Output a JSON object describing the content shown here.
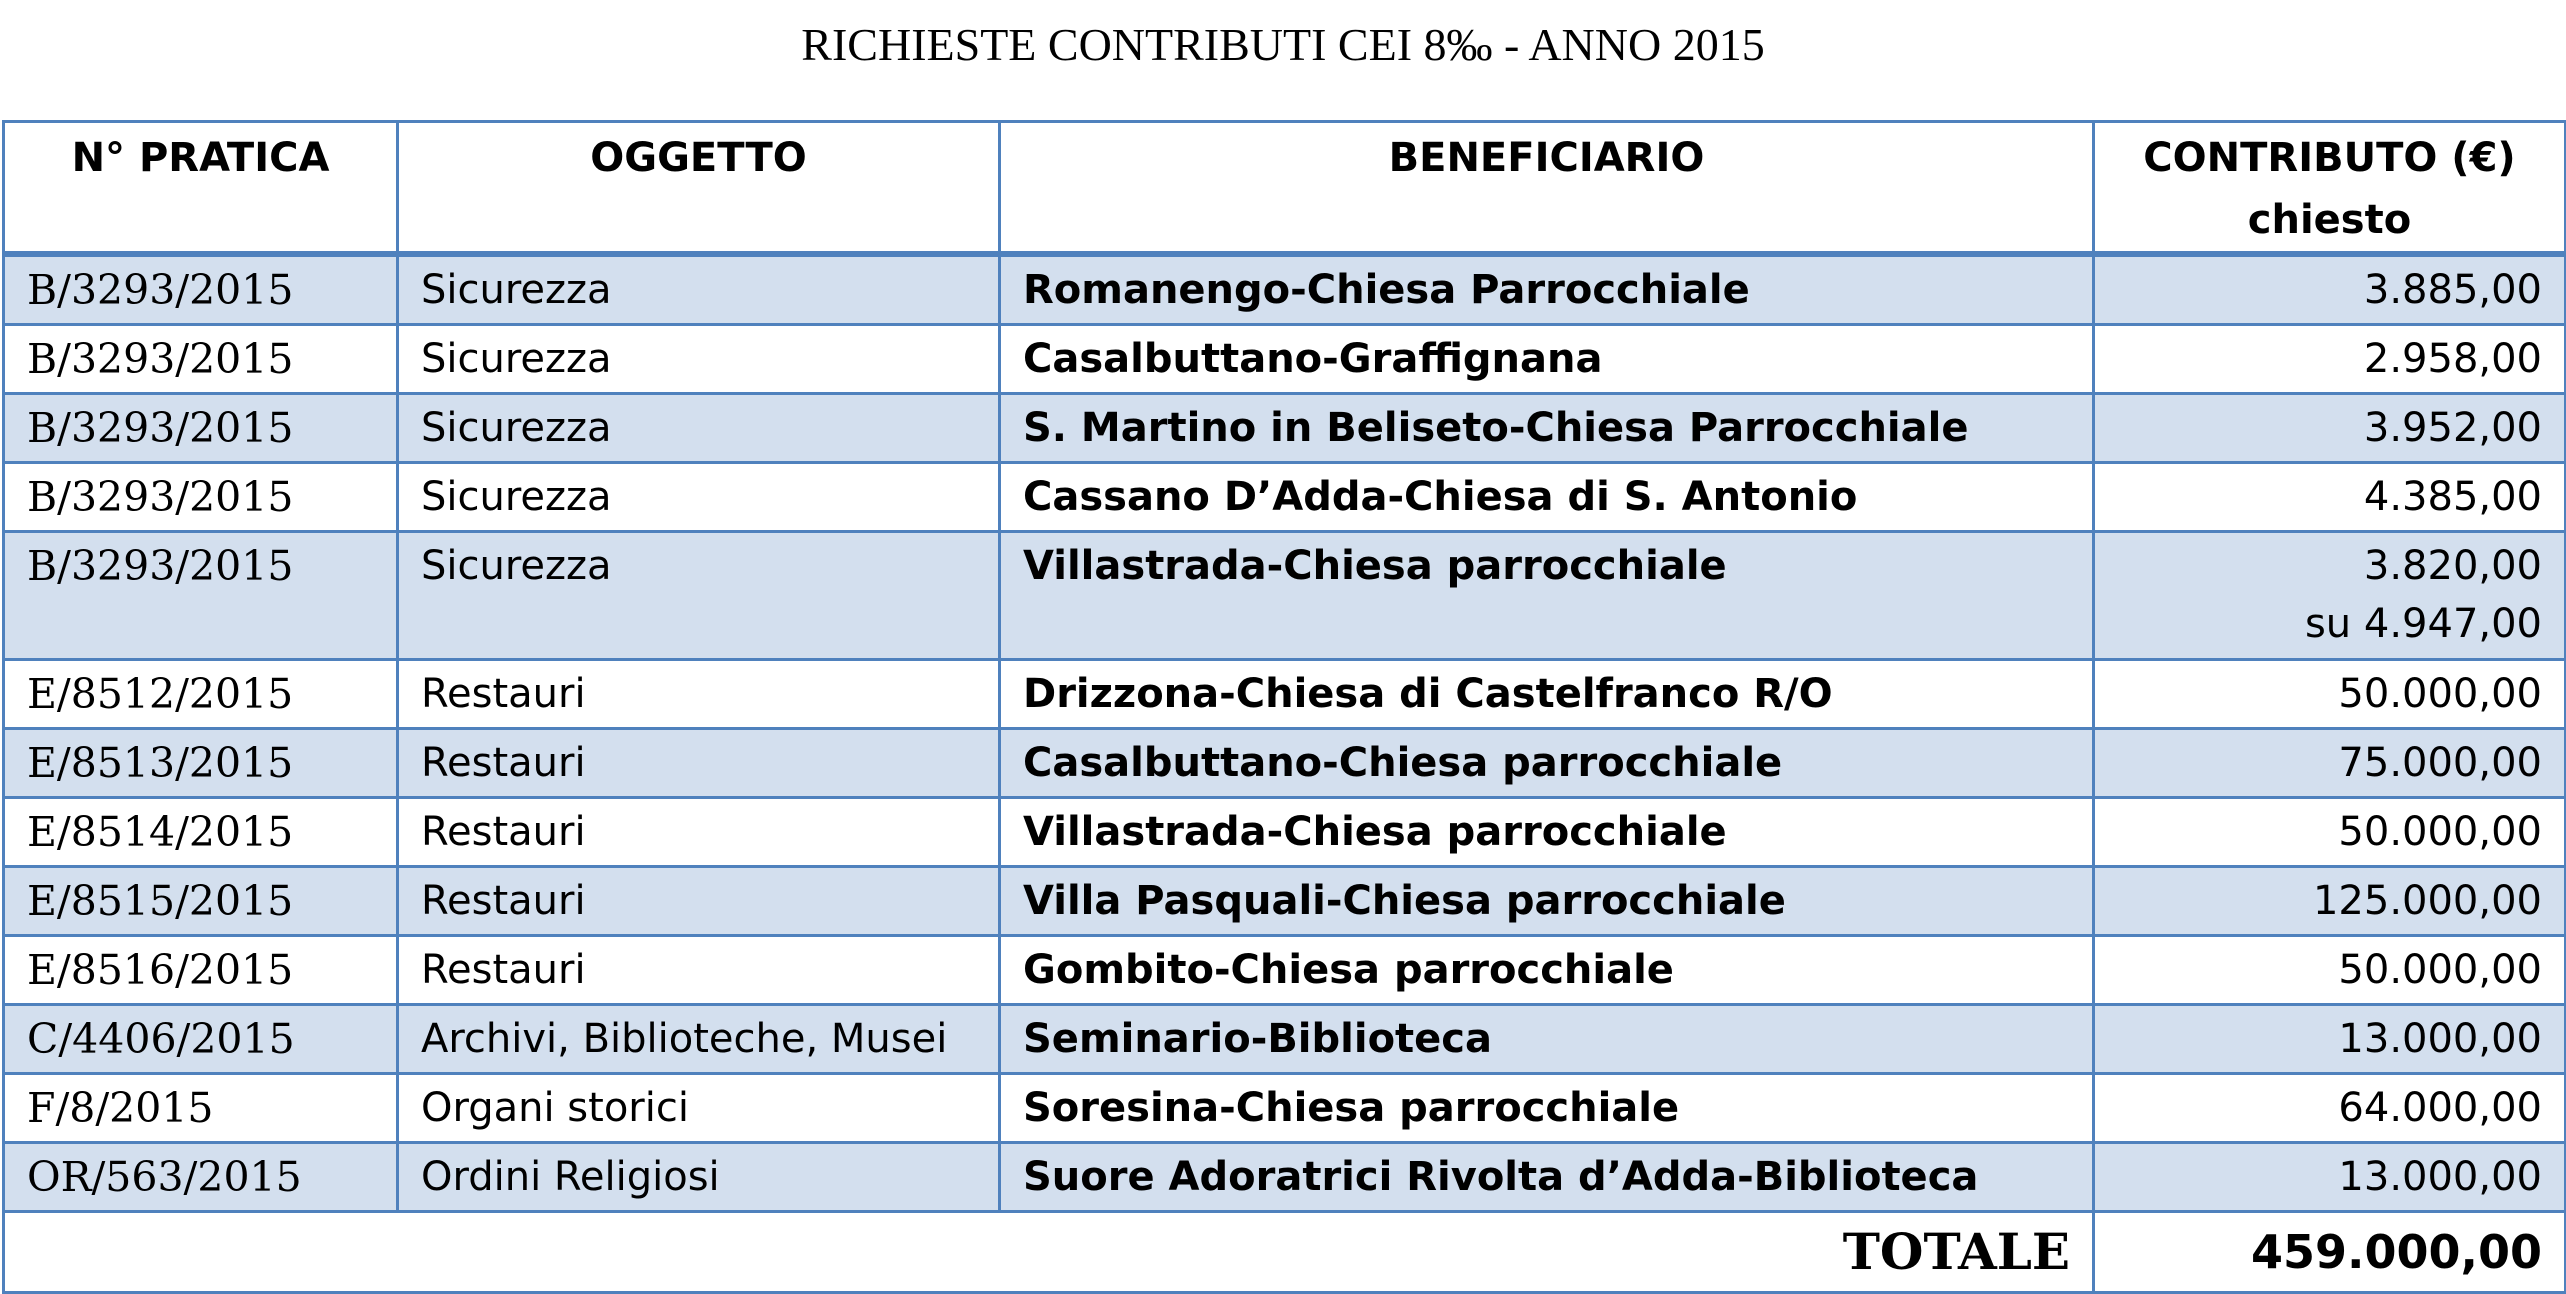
{
  "title": "RICHIESTE CONTRIBUTI CEI 8‰ - ANNO 2015",
  "headers": {
    "pratica": "N° PRATICA",
    "oggetto": "OGGETTO",
    "beneficiario": "BENEFICIARIO",
    "contributo_line1": "CONTRIBUTO (€)",
    "contributo_line2": "chiesto"
  },
  "rows": [
    {
      "pratica": "B/3293/2015",
      "oggetto": "Sicurezza",
      "beneficiario": "Romanengo-Chiesa Parrocchiale",
      "contributo": "3.885,00",
      "note": ""
    },
    {
      "pratica": "B/3293/2015",
      "oggetto": "Sicurezza",
      "beneficiario": "Casalbuttano-Graffignana",
      "contributo": "2.958,00",
      "note": ""
    },
    {
      "pratica": "B/3293/2015",
      "oggetto": "Sicurezza",
      "beneficiario": "S. Martino in Beliseto-Chiesa Parrocchiale",
      "contributo": "3.952,00",
      "note": ""
    },
    {
      "pratica": "B/3293/2015",
      "oggetto": "Sicurezza",
      "beneficiario": "Cassano D’Adda-Chiesa di S. Antonio",
      "contributo": "4.385,00",
      "note": ""
    },
    {
      "pratica": "B/3293/2015",
      "oggetto": "Sicurezza",
      "beneficiario": "Villastrada-Chiesa parrocchiale",
      "contributo": "3.820,00",
      "note": "su 4.947,00"
    },
    {
      "pratica": "E/8512/2015",
      "oggetto": "Restauri",
      "beneficiario": "Drizzona-Chiesa di Castelfranco R/O",
      "contributo": "50.000,00",
      "note": ""
    },
    {
      "pratica": "E/8513/2015",
      "oggetto": "Restauri",
      "beneficiario": "Casalbuttano-Chiesa parrocchiale",
      "contributo": "75.000,00",
      "note": ""
    },
    {
      "pratica": "E/8514/2015",
      "oggetto": "Restauri",
      "beneficiario": "Villastrada-Chiesa parrocchiale",
      "contributo": "50.000,00",
      "note": ""
    },
    {
      "pratica": "E/8515/2015",
      "oggetto": "Restauri",
      "beneficiario": "Villa Pasquali-Chiesa parrocchiale",
      "contributo": "125.000,00",
      "note": ""
    },
    {
      "pratica": "E/8516/2015",
      "oggetto": "Restauri",
      "beneficiario": "Gombito-Chiesa parrocchiale",
      "contributo": "50.000,00",
      "note": ""
    },
    {
      "pratica": "C/4406/2015",
      "oggetto": "Archivi, Biblioteche, Musei",
      "beneficiario": "Seminario-Biblioteca",
      "contributo": "13.000,00",
      "note": ""
    },
    {
      "pratica": "F/8/2015",
      "oggetto": "Organi storici",
      "beneficiario": "Soresina-Chiesa parrocchiale",
      "contributo": "64.000,00",
      "note": ""
    },
    {
      "pratica": "OR/563/2015",
      "oggetto": "Ordini Religiosi",
      "beneficiario": "Suore Adoratrici Rivolta d’Adda-Biblioteca",
      "contributo": "13.000,00",
      "note": ""
    }
  ],
  "total": {
    "label": "TOTALE",
    "value": "459.000,00"
  },
  "colors": {
    "border": "#4f81bd",
    "row_shade": "#d3dfee"
  }
}
